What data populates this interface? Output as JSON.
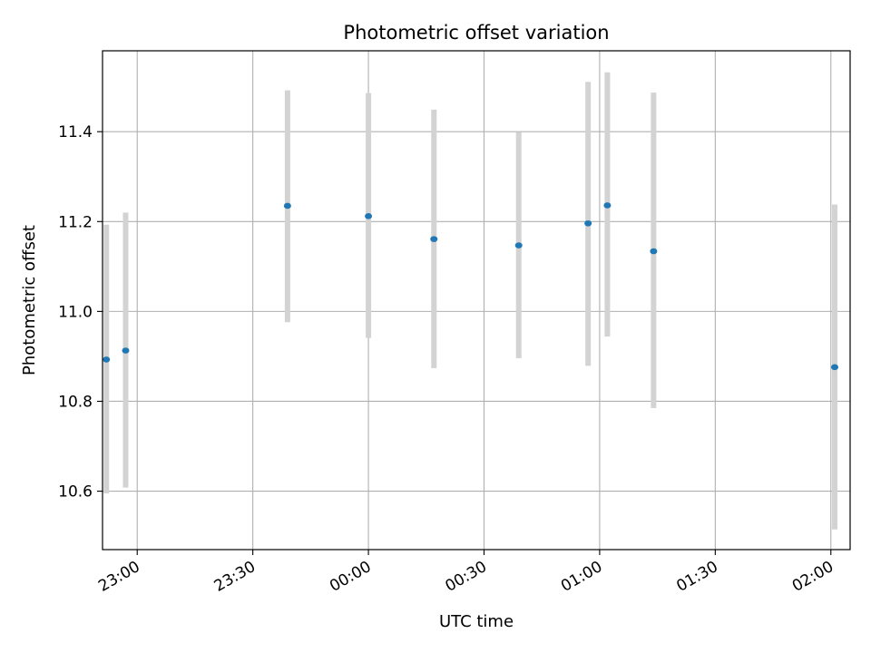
{
  "chart_data": {
    "type": "scatter",
    "title": "Photometric offset variation",
    "xlabel": "UTC time",
    "ylabel": "Photometric offset",
    "x_axis_type": "time",
    "xlim": [
      "22:51",
      "23:00",
      "02:05"
    ],
    "xlim_start": "22:51",
    "xlim_end": "02:05",
    "ylim": [
      10.47,
      11.58
    ],
    "grid": true,
    "x_ticks": [
      "23:00",
      "23:30",
      "00:00",
      "00:30",
      "01:00",
      "01:30",
      "02:00"
    ],
    "y_ticks": [
      10.6,
      10.8,
      11.0,
      11.2,
      11.4
    ],
    "y_tick_labels": [
      "10.6",
      "10.8",
      "11.0",
      "11.2",
      "11.4"
    ],
    "colors": {
      "points": "#1f77b4",
      "errorbars": "#d3d3d3",
      "grid": "#b0b0b0"
    },
    "points": [
      {
        "x": "22:52",
        "y": 10.893,
        "ylow": 10.595,
        "yhigh": 11.193
      },
      {
        "x": "22:57",
        "y": 10.913,
        "ylow": 10.608,
        "yhigh": 11.22
      },
      {
        "x": "23:39",
        "y": 11.235,
        "ylow": 10.976,
        "yhigh": 11.492
      },
      {
        "x": "24:00",
        "y": 11.212,
        "ylow": 10.941,
        "yhigh": 11.486
      },
      {
        "x": "24:17",
        "y": 11.161,
        "ylow": 10.874,
        "yhigh": 11.449
      },
      {
        "x": "24:39",
        "y": 11.147,
        "ylow": 10.896,
        "yhigh": 11.399
      },
      {
        "x": "24:57",
        "y": 11.196,
        "ylow": 10.879,
        "yhigh": 11.511
      },
      {
        "x": "25:02",
        "y": 11.236,
        "ylow": 10.944,
        "yhigh": 11.532
      },
      {
        "x": "25:14",
        "y": 11.134,
        "ylow": 10.785,
        "yhigh": 11.487
      },
      {
        "x": "26:01",
        "y": 10.876,
        "ylow": 10.515,
        "yhigh": 11.238
      }
    ]
  }
}
